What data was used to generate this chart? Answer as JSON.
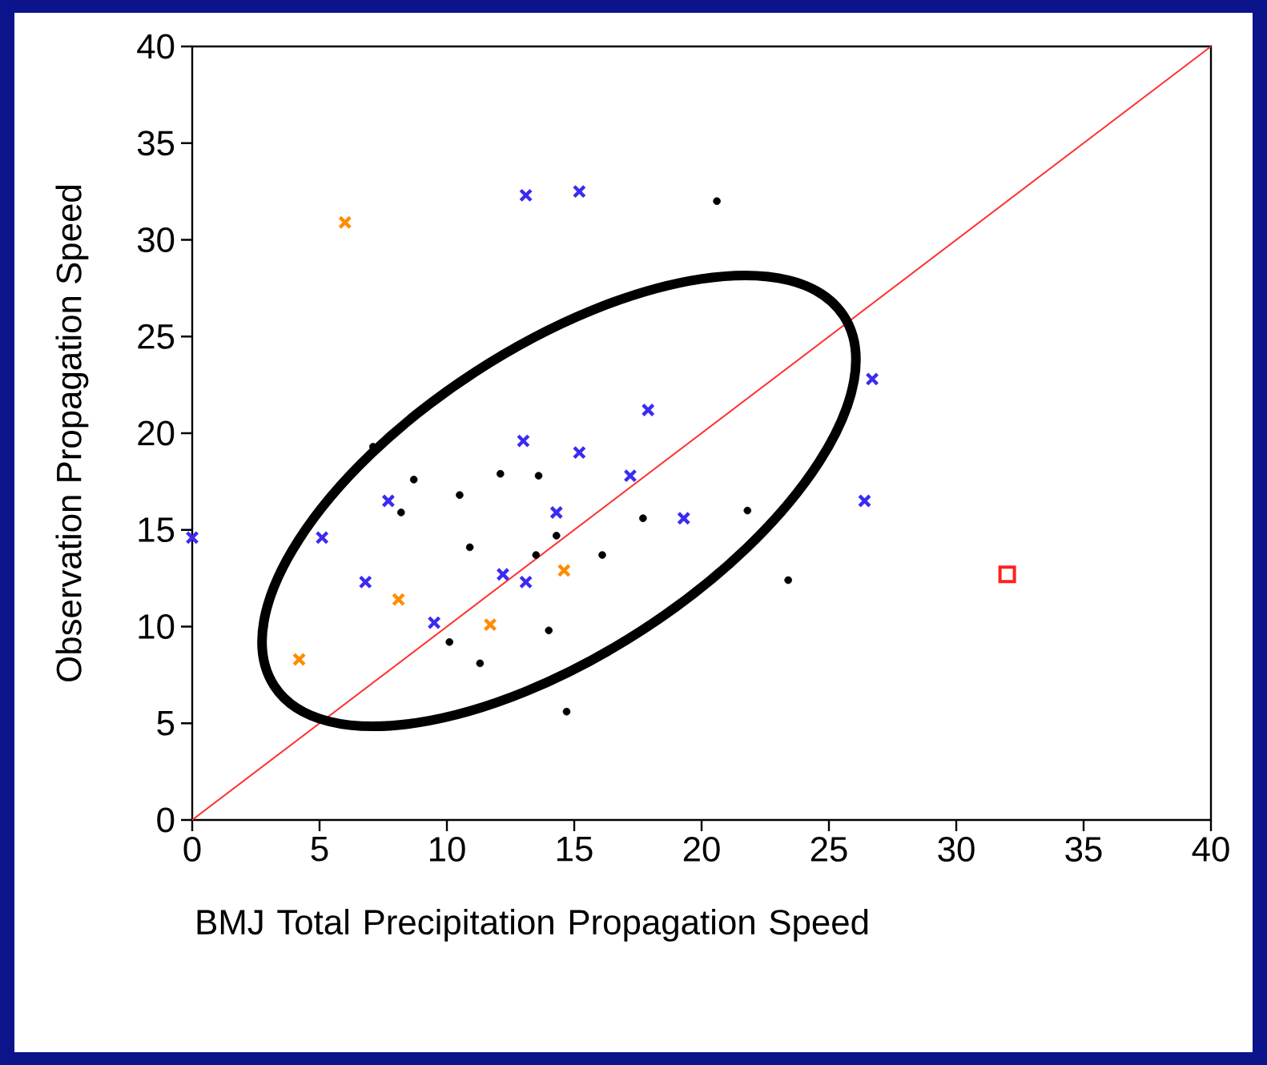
{
  "chart_data": {
    "type": "scatter",
    "xlabel": "BMJ Total Precipitation Propagation Speed",
    "ylabel": "Observation Propagation Speed",
    "xlim": [
      0,
      40
    ],
    "ylim": [
      0,
      40
    ],
    "xticks": [
      0,
      5,
      10,
      15,
      20,
      25,
      30,
      35,
      40
    ],
    "yticks": [
      0,
      5,
      10,
      15,
      20,
      25,
      30,
      35,
      40
    ],
    "series": [
      {
        "type": "scatter",
        "marker": "circle",
        "color": "#000000",
        "x": [
          7.1,
          8.7,
          8.2,
          10.5,
          12.1,
          13.6,
          10.9,
          13.5,
          14.3,
          16.1,
          17.7,
          21.8,
          20.6,
          23.4,
          10.1,
          11.3,
          14.0,
          14.7
        ],
        "values": [
          19.3,
          17.6,
          15.9,
          16.8,
          17.9,
          17.8,
          14.1,
          13.7,
          14.7,
          13.7,
          15.6,
          16.0,
          32.0,
          12.4,
          9.2,
          8.1,
          9.8,
          5.6
        ]
      },
      {
        "type": "scatter",
        "marker": "cross",
        "color": "#3b2bf0",
        "x": [
          13.1,
          15.2,
          17.9,
          13.0,
          15.2,
          17.2,
          7.7,
          5.1,
          6.8,
          9.5,
          12.2,
          13.1,
          14.3,
          19.3,
          26.7,
          26.4,
          0
        ],
        "values": [
          32.3,
          32.5,
          21.2,
          19.6,
          19.0,
          17.8,
          16.5,
          14.6,
          12.3,
          10.2,
          12.7,
          12.3,
          15.9,
          15.6,
          22.8,
          16.5,
          14.6
        ]
      },
      {
        "type": "scatter",
        "marker": "cross",
        "color": "#ff8c00",
        "x": [
          6.0,
          8.1,
          4.2,
          11.7,
          14.6
        ],
        "values": [
          30.9,
          11.4,
          8.3,
          10.1,
          12.9
        ]
      },
      {
        "type": "scatter",
        "marker": "square",
        "color": "#ff2020",
        "x": [
          32.0
        ],
        "values": [
          12.7
        ]
      },
      {
        "type": "line",
        "marker": "none",
        "color": "#ff3030",
        "x": [
          0,
          40
        ],
        "values": [
          0,
          40
        ]
      }
    ]
  }
}
